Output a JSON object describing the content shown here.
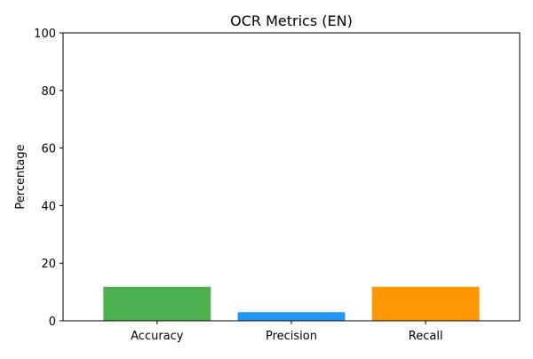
{
  "chart_data": {
    "type": "bar",
    "title": "OCR Metrics (EN)",
    "xlabel": "",
    "ylabel": "Percentage",
    "categories": [
      "Accuracy",
      "Precision",
      "Recall"
    ],
    "values": [
      11.8,
      3.0,
      11.8
    ],
    "colors": [
      "#4caf50",
      "#2196f3",
      "#ff9800"
    ],
    "ylim": [
      0,
      100
    ],
    "yticks": [
      0,
      20,
      40,
      60,
      80,
      100
    ],
    "grid": false,
    "legend": "none"
  }
}
